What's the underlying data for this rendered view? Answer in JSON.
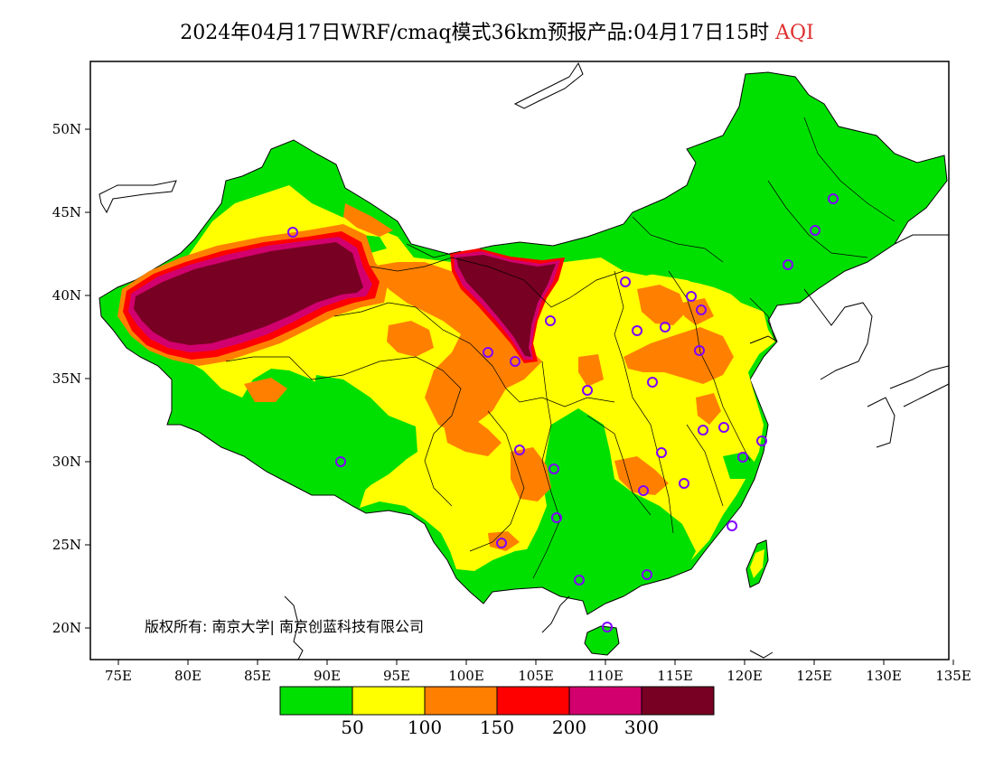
{
  "title": {
    "main": "2024年04月17日WRF/cmaq模式36km预报产品:04月17日15时",
    "variable": "AQI"
  },
  "axes": {
    "x_ticks": [
      "75E",
      "80E",
      "85E",
      "90E",
      "95E",
      "100E",
      "105E",
      "110E",
      "115E",
      "120E",
      "125E",
      "130E",
      "135E"
    ],
    "y_ticks": [
      "50N",
      "45N",
      "40N",
      "35N",
      "30N",
      "25N",
      "20N"
    ]
  },
  "legend": {
    "colors": [
      "#00e000",
      "#ffff00",
      "#ff8000",
      "#ff0000",
      "#d2006e",
      "#780022"
    ],
    "labels": [
      "50",
      "100",
      "150",
      "200",
      "300"
    ]
  },
  "copyright": "版权所有: 南京大学| 南京创蓝科技有限公司",
  "colors": {
    "good": "#00e000",
    "moderate": "#ffff00",
    "usg": "#ff8000",
    "unhealthy": "#ff0000",
    "very_unhealthy": "#d2006e",
    "hazardous": "#780022",
    "station_marker": "#8000ff"
  }
}
